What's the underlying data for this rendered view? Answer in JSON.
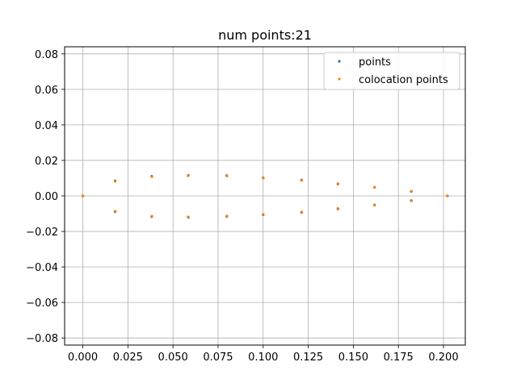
{
  "chart_data": {
    "type": "scatter",
    "title": "num points:21",
    "xlabel": "",
    "ylabel": "",
    "xlim": [
      -0.0101,
      0.2121
    ],
    "ylim": [
      -0.084,
      0.084
    ],
    "xticks": [
      0.0,
      0.025,
      0.05,
      0.075,
      0.1,
      0.125,
      0.15,
      0.175,
      0.2
    ],
    "xtick_labels": [
      "0.000",
      "0.025",
      "0.050",
      "0.075",
      "0.100",
      "0.125",
      "0.150",
      "0.175",
      "0.200"
    ],
    "yticks": [
      -0.08,
      -0.06,
      -0.04,
      -0.02,
      0.0,
      0.02,
      0.04,
      0.06,
      0.08
    ],
    "ytick_labels": [
      "−0.08",
      "−0.06",
      "−0.04",
      "−0.02",
      "0.00",
      "0.02",
      "0.04",
      "0.06",
      "0.08"
    ],
    "grid": true,
    "legend_position": "top-right",
    "series": [
      {
        "name": "points",
        "color": "#1f77b4",
        "x": [
          0.0,
          0.0179,
          0.0382,
          0.0585,
          0.0798,
          0.1,
          0.1213,
          0.1415,
          0.1618,
          0.1821,
          0.2022,
          0.1821,
          0.1618,
          0.1415,
          0.1213,
          0.1,
          0.0798,
          0.0585,
          0.0382,
          0.0179,
          0.0
        ],
        "y": [
          0.0,
          0.0085,
          0.0111,
          0.0116,
          0.0115,
          0.0102,
          0.009,
          0.0068,
          0.0049,
          0.0025,
          0.0,
          -0.0026,
          -0.0051,
          -0.0073,
          -0.0093,
          -0.0106,
          -0.0116,
          -0.0121,
          -0.0117,
          -0.0089,
          0.0
        ]
      },
      {
        "name": "colocation points",
        "color": "#ff7f0e",
        "x": [
          0.018,
          0.0383,
          0.0584,
          0.0799,
          0.1001,
          0.1214,
          0.1414,
          0.1617,
          0.1823,
          0.202,
          0.1823,
          0.1617,
          0.1414,
          0.1214,
          0.1001,
          0.0799,
          0.0584,
          0.0383,
          0.018,
          0.0
        ],
        "y": [
          0.0082,
          0.0108,
          0.0113,
          0.0112,
          0.01,
          0.0087,
          0.0066,
          0.0048,
          0.0027,
          0.0,
          -0.0028,
          -0.0053,
          -0.007,
          -0.009,
          -0.0104,
          -0.0113,
          -0.0118,
          -0.0114,
          -0.0086,
          0.0
        ]
      }
    ]
  }
}
